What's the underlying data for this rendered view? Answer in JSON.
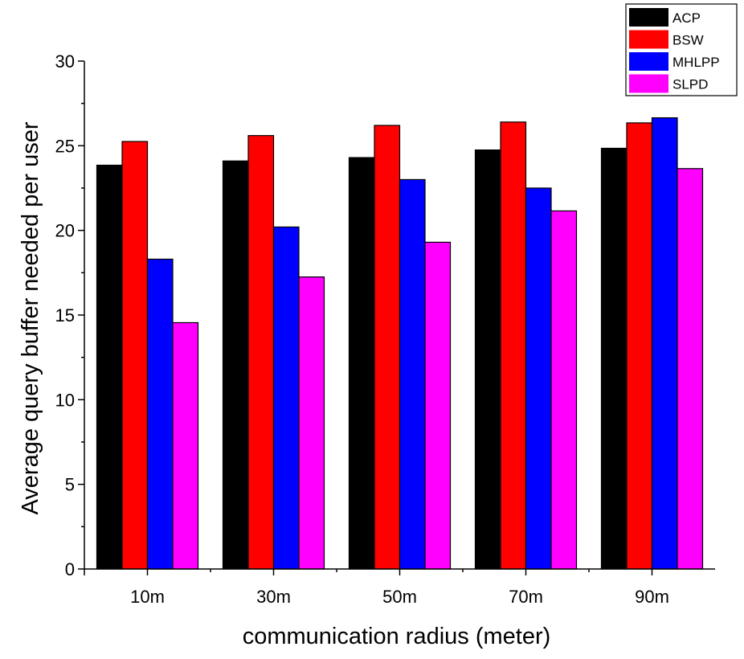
{
  "chart_data": {
    "type": "bar",
    "title": "",
    "xlabel": "communication radius (meter)",
    "ylabel": "Average query buffer needed per user",
    "categories": [
      "10m",
      "30m",
      "50m",
      "70m",
      "90m"
    ],
    "ylim": [
      0,
      30
    ],
    "yticks": [
      0,
      5,
      10,
      15,
      20,
      25,
      30
    ],
    "grid": false,
    "legend_position": "top-right",
    "series": [
      {
        "name": "ACP",
        "color": "#000000",
        "values": [
          23.85,
          24.1,
          24.3,
          24.75,
          24.85
        ]
      },
      {
        "name": "BSW",
        "color": "#ff0000",
        "values": [
          25.25,
          25.6,
          26.2,
          26.4,
          26.35
        ]
      },
      {
        "name": "MHLPP",
        "color": "#0000ff",
        "values": [
          18.3,
          20.2,
          23.0,
          22.5,
          26.65
        ]
      },
      {
        "name": "SLPD",
        "color": "#ff00ff",
        "values": [
          14.55,
          17.25,
          19.3,
          21.15,
          23.65
        ]
      }
    ]
  }
}
